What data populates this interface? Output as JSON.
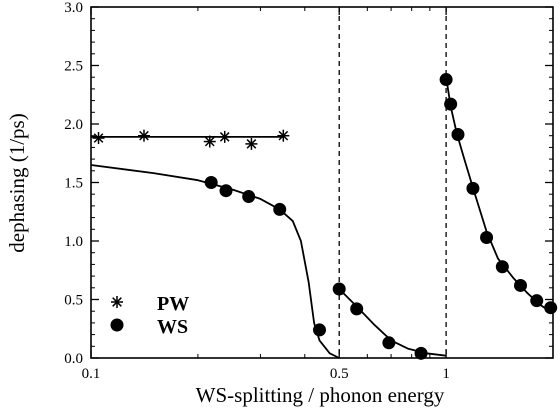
{
  "chart_data": {
    "type": "scatter",
    "xlabel": "WS-splitting / phonon energy",
    "ylabel": "dephasing   (1/ps)",
    "x_scale": "log",
    "xlim": [
      0.1,
      2.0
    ],
    "ylim": [
      0.0,
      3.0
    ],
    "x_ticks": [
      0.1,
      0.5,
      1
    ],
    "x_tick_labels": [
      "0.1",
      "0.5",
      "1"
    ],
    "y_ticks": [
      0.0,
      0.5,
      1.0,
      1.5,
      2.0,
      2.5,
      3.0
    ],
    "y_tick_labels": [
      "0.0",
      "0.5",
      "1.0",
      "1.5",
      "2.0",
      "2.5",
      "3.0"
    ],
    "vertical_reference_lines": [
      0.5,
      1.0
    ],
    "grid": false,
    "legend_position": "bottom-left",
    "series": [
      {
        "name": "PW",
        "marker": "asterisk",
        "points": [
          {
            "x": 0.105,
            "y": 1.88
          },
          {
            "x": 0.141,
            "y": 1.9
          },
          {
            "x": 0.216,
            "y": 1.85
          },
          {
            "x": 0.238,
            "y": 1.89
          },
          {
            "x": 0.283,
            "y": 1.83
          },
          {
            "x": 0.348,
            "y": 1.9
          }
        ],
        "fit_line": [
          [
            0.1,
            1.89
          ],
          [
            0.348,
            1.89
          ]
        ]
      },
      {
        "name": "WS",
        "marker": "filled-circle",
        "points": [
          {
            "x": 0.218,
            "y": 1.5
          },
          {
            "x": 0.24,
            "y": 1.43
          },
          {
            "x": 0.278,
            "y": 1.38
          },
          {
            "x": 0.34,
            "y": 1.27
          },
          {
            "x": 0.44,
            "y": 0.24
          },
          {
            "x": 0.5,
            "y": 0.59
          },
          {
            "x": 0.56,
            "y": 0.42
          },
          {
            "x": 0.69,
            "y": 0.13
          },
          {
            "x": 0.85,
            "y": 0.04
          },
          {
            "x": 1.0,
            "y": 2.38
          },
          {
            "x": 1.03,
            "y": 2.17
          },
          {
            "x": 1.08,
            "y": 1.91
          },
          {
            "x": 1.19,
            "y": 1.45
          },
          {
            "x": 1.3,
            "y": 1.03
          },
          {
            "x": 1.44,
            "y": 0.78
          },
          {
            "x": 1.62,
            "y": 0.62
          },
          {
            "x": 1.8,
            "y": 0.49
          },
          {
            "x": 1.97,
            "y": 0.43
          }
        ],
        "fit_curves": [
          [
            [
              0.1,
              1.65
            ],
            [
              0.15,
              1.58
            ],
            [
              0.2,
              1.52
            ],
            [
              0.25,
              1.44
            ],
            [
              0.3,
              1.36
            ],
            [
              0.34,
              1.27
            ],
            [
              0.37,
              1.17
            ],
            [
              0.39,
              1.0
            ],
            [
              0.41,
              0.65
            ],
            [
              0.425,
              0.3
            ],
            [
              0.44,
              0.15
            ],
            [
              0.47,
              0.04
            ],
            [
              0.5,
              0.0
            ]
          ],
          [
            [
              0.5,
              0.59
            ],
            [
              0.56,
              0.44
            ],
            [
              0.63,
              0.28
            ],
            [
              0.7,
              0.15
            ],
            [
              0.78,
              0.08
            ],
            [
              0.88,
              0.04
            ],
            [
              1.0,
              0.02
            ]
          ],
          [
            [
              1.0,
              2.4
            ],
            [
              1.03,
              2.15
            ],
            [
              1.07,
              1.93
            ],
            [
              1.12,
              1.72
            ],
            [
              1.2,
              1.42
            ],
            [
              1.3,
              1.08
            ],
            [
              1.4,
              0.85
            ],
            [
              1.55,
              0.68
            ],
            [
              1.7,
              0.55
            ],
            [
              1.85,
              0.45
            ],
            [
              2.0,
              0.38
            ]
          ]
        ]
      }
    ]
  }
}
